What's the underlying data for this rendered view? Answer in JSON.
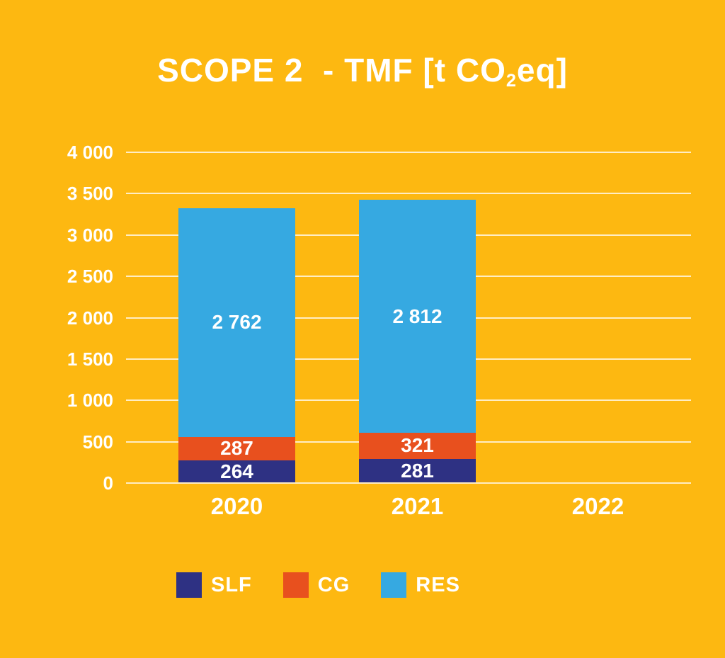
{
  "title": {
    "prefix": "SCOPE 2  - TMF [t CO",
    "sub": "2",
    "suffix": "eq]"
  },
  "colors": {
    "background": "#FDB811",
    "grid": "rgba(255,255,255,0.75)",
    "text": "#FFFFFF",
    "slf": "#2E3183",
    "cg": "#E8501E",
    "res": "#36A9E1"
  },
  "chart_data": {
    "type": "bar",
    "stacked": true,
    "title": "SCOPE 2 - TMF [t CO2eq]",
    "categories": [
      "2020",
      "2021",
      "2022"
    ],
    "series": [
      {
        "name": "SLF",
        "color_key": "slf",
        "values": [
          264,
          281,
          0
        ]
      },
      {
        "name": "CG",
        "color_key": "cg",
        "values": [
          287,
          321,
          0
        ]
      },
      {
        "name": "RES",
        "color_key": "res",
        "values": [
          2762,
          2812,
          0
        ]
      }
    ],
    "totals": [
      3313,
      3414,
      0
    ],
    "value_labels": [
      [
        "264",
        "287",
        "2 762"
      ],
      [
        "281",
        "321",
        "2 812"
      ],
      []
    ],
    "ylabel": "",
    "xlabel": "",
    "ylim": [
      0,
      4000
    ],
    "ytick_step": 500,
    "yticks": [
      "4 000",
      "3 500",
      "3 000",
      "2 500",
      "2 000",
      "1 500",
      "1 000",
      "500",
      "0"
    ],
    "grid": true,
    "legend_position": "bottom",
    "legend_entries": [
      "SLF",
      "CG",
      "RES"
    ]
  }
}
